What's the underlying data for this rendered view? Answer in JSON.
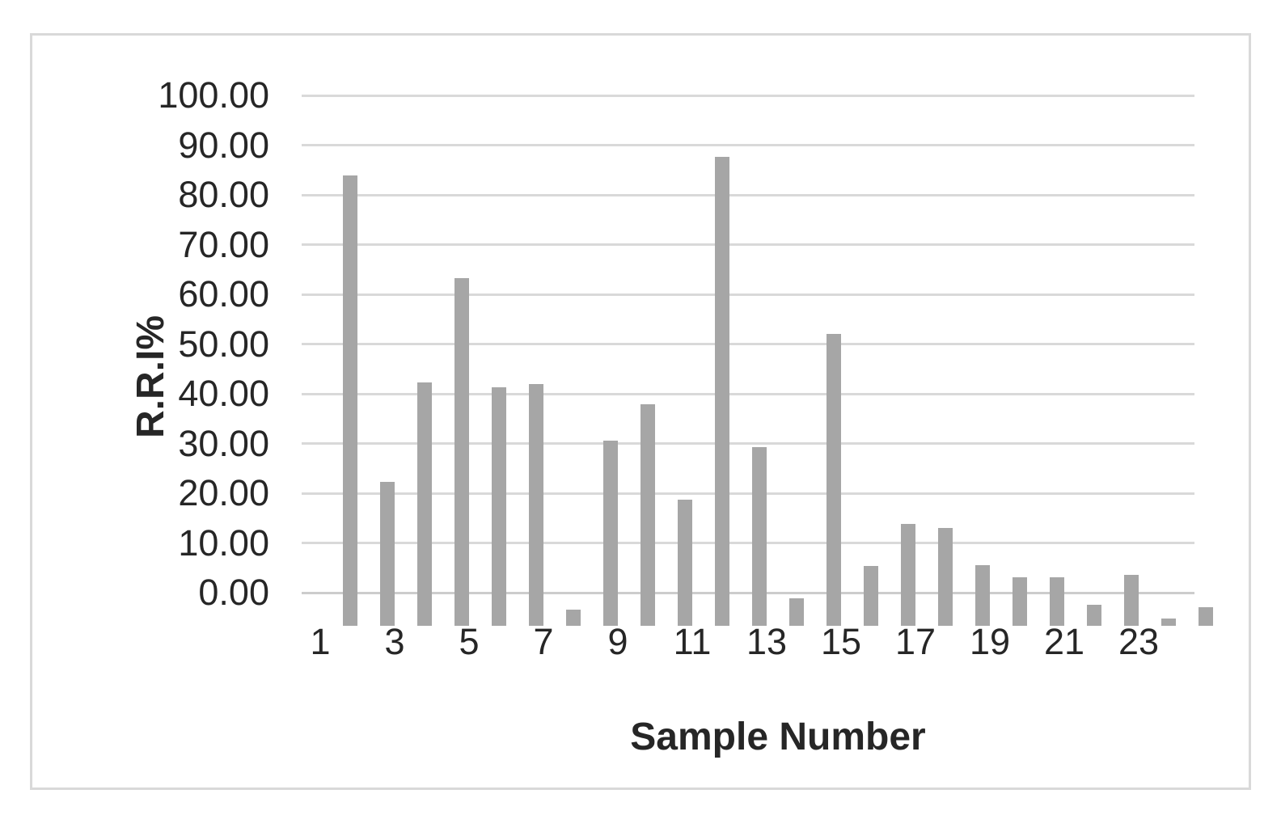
{
  "chart_data": {
    "type": "bar",
    "title": "",
    "xlabel": "Sample Number",
    "ylabel": "R.R.I%",
    "categories": [
      1,
      2,
      3,
      4,
      5,
      6,
      7,
      8,
      9,
      10,
      11,
      12,
      13,
      14,
      15,
      16,
      17,
      18,
      19,
      20,
      21,
      22,
      23,
      24
    ],
    "values": [
      90.5,
      29.0,
      48.9,
      70.0,
      47.9,
      48.6,
      3.3,
      37.3,
      44.6,
      25.3,
      94.3,
      36.0,
      5.5,
      58.7,
      12.1,
      20.5,
      19.6,
      12.2,
      9.7,
      9.7,
      4.2,
      10.2,
      1.5,
      3.7
    ],
    "ylim": [
      0,
      100
    ],
    "y_step": 10,
    "y_tick_labels": [
      "0.00",
      "10.00",
      "20.00",
      "30.00",
      "40.00",
      "50.00",
      "60.00",
      "70.00",
      "80.00",
      "90.00",
      "100.00"
    ],
    "x_tick_labels": [
      "1",
      "3",
      "5",
      "7",
      "9",
      "11",
      "13",
      "15",
      "17",
      "19",
      "21",
      "23"
    ],
    "grid": true,
    "legend": "none",
    "colors": {
      "bar": "#a6a6a6",
      "gridline": "#d9d9d9",
      "axis_line": "#cccccc",
      "text": "#262626",
      "frame_border": "#d9d9d9",
      "background": "#ffffff"
    }
  }
}
